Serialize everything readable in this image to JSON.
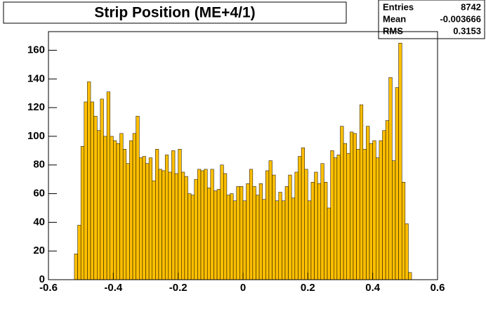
{
  "chart_data": {
    "type": "histogram",
    "title": "Strip Position (ME+4/1)",
    "bins": [
      -0.52,
      -0.51,
      -0.5,
      -0.49,
      -0.48,
      -0.47,
      -0.46,
      -0.45,
      -0.44,
      -0.43,
      -0.42,
      -0.41,
      -0.4,
      -0.39,
      -0.38,
      -0.37,
      -0.36,
      -0.35,
      -0.34,
      -0.33,
      -0.32,
      -0.31,
      -0.3,
      -0.29,
      -0.28,
      -0.27,
      -0.26,
      -0.25,
      -0.24,
      -0.23,
      -0.22,
      -0.21,
      -0.2,
      -0.19,
      -0.18,
      -0.17,
      -0.16,
      -0.15,
      -0.14,
      -0.13,
      -0.12,
      -0.11,
      -0.1,
      -0.09,
      -0.08,
      -0.07,
      -0.06,
      -0.05,
      -0.04,
      -0.03,
      -0.02,
      -0.01,
      0,
      0.01,
      0.02,
      0.03,
      0.04,
      0.05,
      0.06,
      0.07,
      0.08,
      0.09,
      0.1,
      0.11,
      0.12,
      0.13,
      0.14,
      0.15,
      0.16,
      0.17,
      0.18,
      0.19,
      0.2,
      0.21,
      0.22,
      0.23,
      0.24,
      0.25,
      0.26,
      0.27,
      0.28,
      0.29,
      0.3,
      0.31,
      0.32,
      0.33,
      0.34,
      0.35,
      0.36,
      0.37,
      0.38,
      0.39,
      0.4,
      0.41,
      0.42,
      0.43,
      0.44,
      0.45,
      0.46,
      0.47,
      0.48,
      0.49,
      0.5,
      0.51,
      0.52
    ],
    "values": [
      18,
      38,
      93,
      124,
      138,
      124,
      114,
      104,
      126,
      100,
      131,
      100,
      97,
      95,
      102,
      91,
      81,
      97,
      102,
      114,
      85,
      86,
      81,
      85,
      69,
      91,
      77,
      76,
      87,
      75,
      90,
      74,
      91,
      75,
      72,
      60,
      59,
      70,
      77,
      76,
      77,
      64,
      77,
      62,
      63,
      80,
      74,
      59,
      60,
      55,
      65,
      65,
      55,
      67,
      77,
      65,
      59,
      67,
      56,
      76,
      83,
      73,
      55,
      61,
      55,
      65,
      73,
      57,
      75,
      86,
      92,
      77,
      55,
      68,
      75,
      67,
      81,
      68,
      50,
      90,
      85,
      87,
      107,
      95,
      88,
      103,
      102,
      91,
      122,
      91,
      107,
      95,
      97,
      85,
      97,
      104,
      111,
      141,
      83,
      134,
      165,
      68,
      39,
      5
    ],
    "color": "#ffbf00",
    "xlim": [
      -0.6,
      0.6
    ],
    "xticks": [
      -0.6,
      -0.4,
      -0.2,
      0,
      0.2,
      0.4,
      0.6
    ],
    "ylim": [
      0,
      173
    ],
    "yticks": [
      0,
      20,
      40,
      60,
      80,
      100,
      120,
      140,
      160
    ],
    "stats": [
      {
        "label": "Entries",
        "value": 8742
      },
      {
        "label": "Mean",
        "value": -0.003666
      },
      {
        "label": "RMS",
        "value": 0.3153
      }
    ]
  }
}
